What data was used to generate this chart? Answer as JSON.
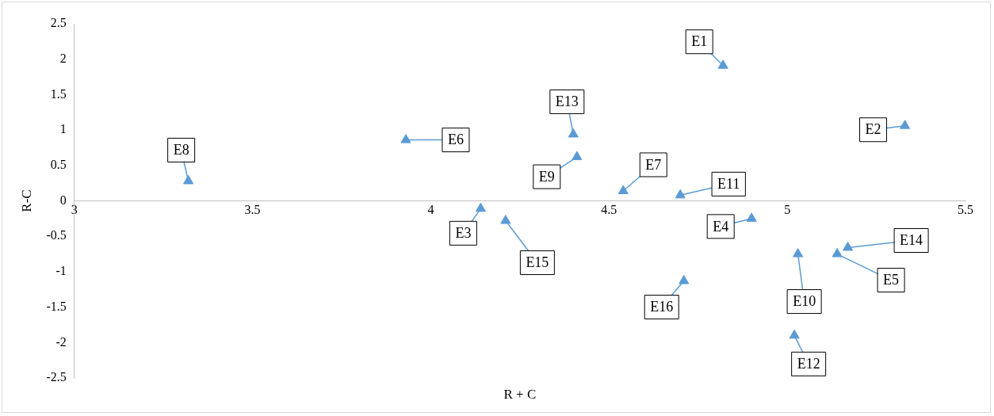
{
  "chart_data": {
    "type": "scatter",
    "xlabel": "R + C",
    "ylabel": "R-C",
    "xlim": [
      3,
      5.5
    ],
    "xticks": [
      3,
      3.5,
      4,
      4.5,
      5,
      5.5
    ],
    "ylim": [
      -2.5,
      2.5
    ],
    "yticks": [
      -2.5,
      -2,
      -1.5,
      -1,
      -0.5,
      0,
      0.5,
      1,
      1.5,
      2,
      2.5
    ],
    "grid": false,
    "legend": false,
    "marker": "triangle",
    "series": [
      {
        "color": "#5b9bd5",
        "x": [
          4.82,
          5.33,
          4.14,
          4.9,
          5.14,
          3.93,
          4.54,
          3.32,
          4.41,
          5.03,
          4.7,
          5.02,
          4.4,
          5.17,
          4.21,
          4.71
        ],
        "values": [
          1.91,
          1.06,
          -0.11,
          -0.25,
          -0.75,
          0.86,
          0.14,
          0.28,
          0.62,
          -0.75,
          0.08,
          -1.9,
          0.94,
          -0.66,
          -0.28,
          -1.13
        ]
      }
    ],
    "annotations": [
      {
        "text": "E1",
        "x": 4.82,
        "y": 1.91
      },
      {
        "text": "E2",
        "x": 5.33,
        "y": 1.06
      },
      {
        "text": "E3",
        "x": 4.14,
        "y": -0.11
      },
      {
        "text": "E4",
        "x": 4.9,
        "y": -0.25
      },
      {
        "text": "E5",
        "x": 5.14,
        "y": -0.75
      },
      {
        "text": "E6",
        "x": 3.93,
        "y": 0.86
      },
      {
        "text": "E7",
        "x": 4.54,
        "y": 0.14
      },
      {
        "text": "E8",
        "x": 3.32,
        "y": 0.28
      },
      {
        "text": "E9",
        "x": 4.41,
        "y": 0.62
      },
      {
        "text": "E10",
        "x": 5.03,
        "y": -0.75
      },
      {
        "text": "E11",
        "x": 4.7,
        "y": 0.08
      },
      {
        "text": "E12",
        "x": 5.02,
        "y": -1.9
      },
      {
        "text": "E13",
        "x": 4.4,
        "y": 0.94
      },
      {
        "text": "E14",
        "x": 5.17,
        "y": -0.66
      },
      {
        "text": "E15",
        "x": 4.21,
        "y": -0.28
      },
      {
        "text": "E16",
        "x": 4.71,
        "y": -1.13
      }
    ]
  }
}
